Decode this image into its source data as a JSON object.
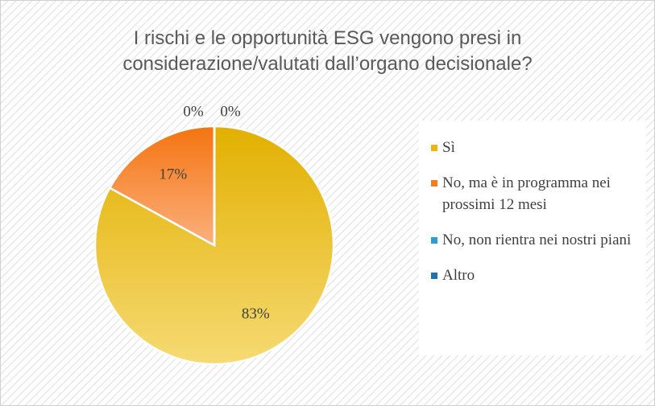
{
  "chart_data": {
    "type": "pie",
    "title": "I rischi e le opportunità ESG vengono presi in considerazione/valutati dall’organo decisionale?",
    "categories": [
      "Sì",
      "No, ma è in programma nei prossimi 12 mesi",
      "No, non rientra nei nostri piani",
      "Altro"
    ],
    "values": [
      83,
      17,
      0,
      0
    ],
    "value_labels": [
      "83%",
      "17%",
      "0%",
      "0%"
    ],
    "colors": [
      "#e8b810",
      "#f47d20",
      "#2a9fd6",
      "#1e73b0"
    ],
    "legend": "right"
  }
}
